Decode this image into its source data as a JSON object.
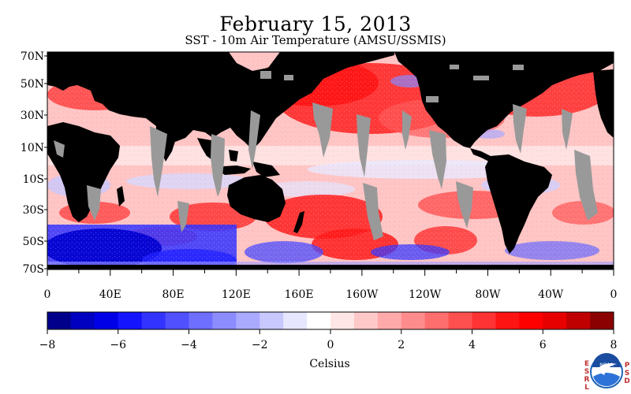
{
  "header": {
    "title": "February 15, 2013",
    "subtitle": "SST - 10m Air Temperature (AMSU/SSMIS)"
  },
  "map": {
    "lat_ticks": [
      "70N",
      "50N",
      "30N",
      "10N",
      "10S",
      "30S",
      "50S",
      "70S"
    ],
    "lon_ticks": [
      "0",
      "40E",
      "80E",
      "120E",
      "160E",
      "160W",
      "120W",
      "80W",
      "40W",
      "0"
    ],
    "colors": {
      "land": "#000000",
      "missing": "#999999",
      "warm": "#ff0000",
      "cold": "#0000ff"
    }
  },
  "colorbar": {
    "title": "Celsius",
    "tick_labels": [
      "−8",
      "−6",
      "−4",
      "−2",
      "0",
      "2",
      "4",
      "6",
      "8"
    ],
    "colors": [
      "#00008b",
      "#0000c0",
      "#0000e6",
      "#1414ff",
      "#3333ff",
      "#5050ff",
      "#6e6eff",
      "#8c8cff",
      "#aaaaff",
      "#c8c8ff",
      "#e6e6ff",
      "#ffffff",
      "#ffe6e6",
      "#ffc8c8",
      "#ffaaaa",
      "#ff8c8c",
      "#ff6e6e",
      "#ff5050",
      "#ff3333",
      "#ff1414",
      "#ff0000",
      "#e60000",
      "#c00000",
      "#8b0000"
    ]
  },
  "logo": {
    "left_letters": [
      "E",
      "S",
      "R",
      "L"
    ],
    "right_letters": [
      "P",
      "S",
      "D"
    ],
    "center_text": "NOAA"
  }
}
